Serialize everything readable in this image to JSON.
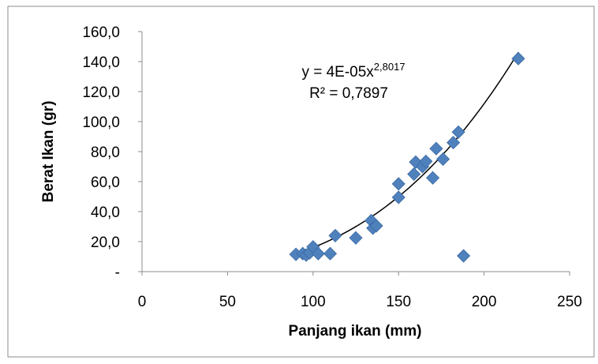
{
  "chart_data": {
    "type": "scatter",
    "xlabel": "Panjang ikan (mm)",
    "ylabel": "Berat Ikan (gr)",
    "xlim": [
      0,
      250
    ],
    "ylim": [
      0,
      160
    ],
    "x_ticks": [
      "0",
      "50",
      "100",
      "150",
      "200",
      "250"
    ],
    "y_ticks": [
      "-",
      "20,0",
      "40,0",
      "60,0",
      "80,0",
      "100,0",
      "120,0",
      "140,0",
      "160,0"
    ],
    "grid": false,
    "marker": "diamond",
    "marker_color": "#4F81BD",
    "series": [
      {
        "points": [
          [
            90,
            11.5
          ],
          [
            94,
            12
          ],
          [
            96,
            11
          ],
          [
            98,
            12.5
          ],
          [
            100,
            16.5
          ],
          [
            103,
            12
          ],
          [
            110,
            12
          ],
          [
            113,
            24
          ],
          [
            125,
            22.5
          ],
          [
            134,
            34
          ],
          [
            135,
            29
          ],
          [
            137,
            30.5
          ],
          [
            150,
            58.5
          ],
          [
            150,
            49.5
          ],
          [
            159,
            65
          ],
          [
            160,
            73
          ],
          [
            164,
            70
          ],
          [
            166,
            73.5
          ],
          [
            170,
            62.5
          ],
          [
            172,
            82
          ],
          [
            176,
            75
          ],
          [
            182,
            86
          ],
          [
            185,
            93
          ],
          [
            188,
            10.5
          ],
          [
            220,
            142
          ]
        ]
      }
    ],
    "trendline": {
      "type": "power",
      "coefficient": 4e-05,
      "exponent": 2.8017,
      "x_range": [
        90,
        220
      ],
      "equation_prefix": "y = 4E-05x",
      "equation_exponent": "2,8017",
      "r_squared_label": "R² = 0,7897"
    }
  }
}
